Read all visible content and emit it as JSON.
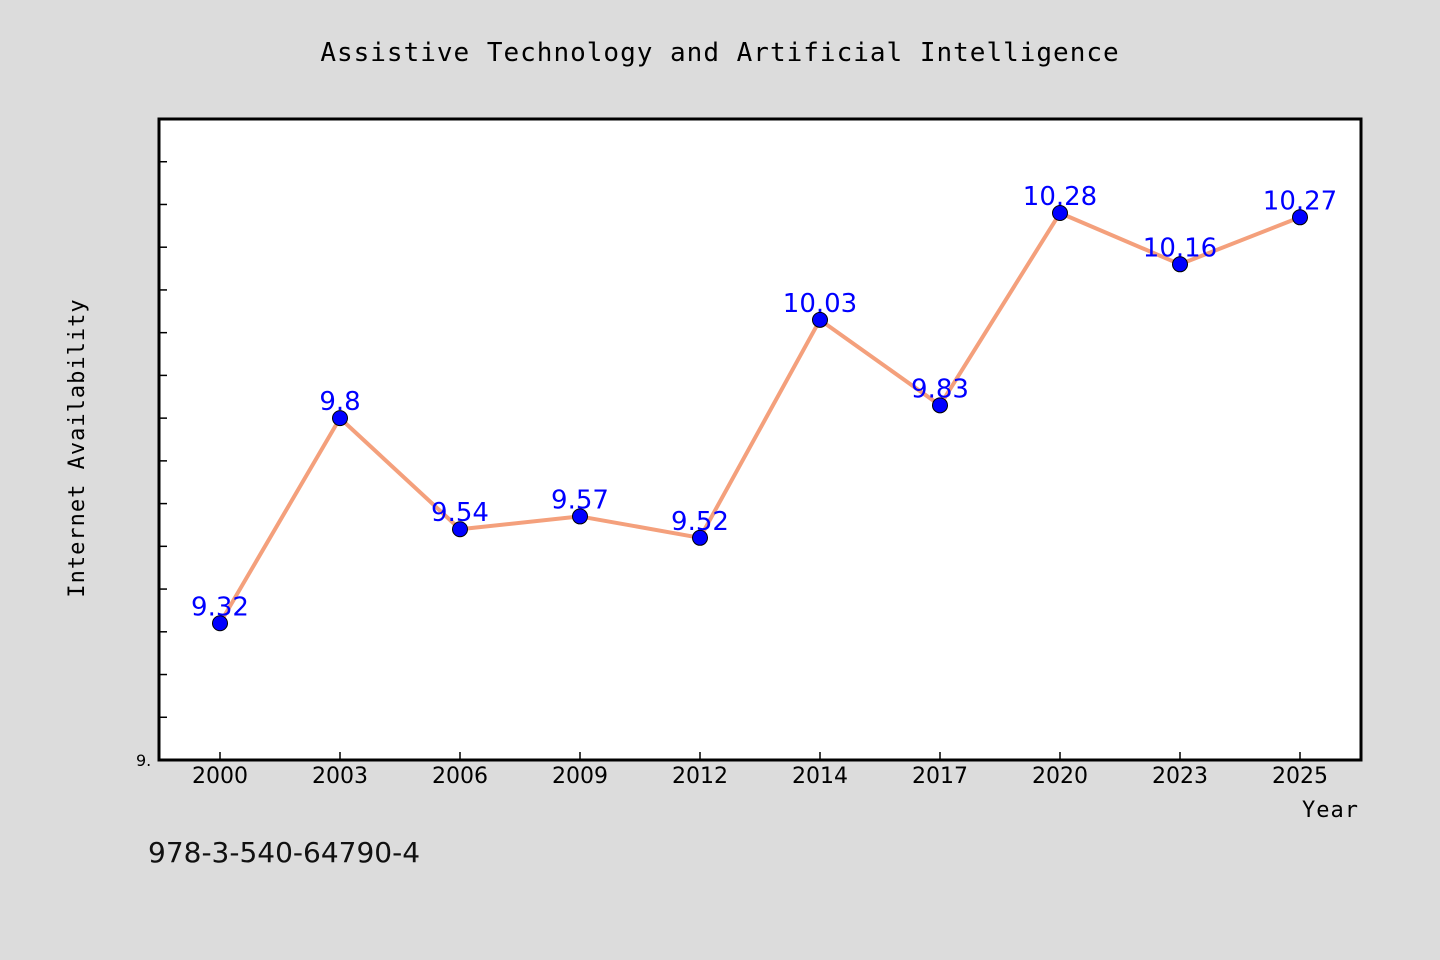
{
  "chart_data": {
    "type": "line",
    "title": "Assistive Technology and Artificial Intelligence",
    "xlabel": "Year",
    "ylabel": "Internet Availability",
    "categories": [
      "2000",
      "2003",
      "2006",
      "2009",
      "2012",
      "2014",
      "2017",
      "2020",
      "2023",
      "2025"
    ],
    "values": [
      9.32,
      9.8,
      9.54,
      9.57,
      9.52,
      10.03,
      9.83,
      10.28,
      10.16,
      10.27
    ],
    "data_labels": [
      "9.32",
      "9.8",
      "9.54",
      "9.57",
      "9.52",
      "10.03",
      "9.83",
      "10.28",
      "10.16",
      "10.27"
    ],
    "ylim": [
      9.0,
      10.5
    ],
    "ytick_label": "9.",
    "grid": false,
    "line_color": "#f4a07c",
    "marker_color": "#0000ff",
    "label_color": "#0000ff"
  },
  "footer": {
    "id_text": "978-3-540-64790-4"
  }
}
